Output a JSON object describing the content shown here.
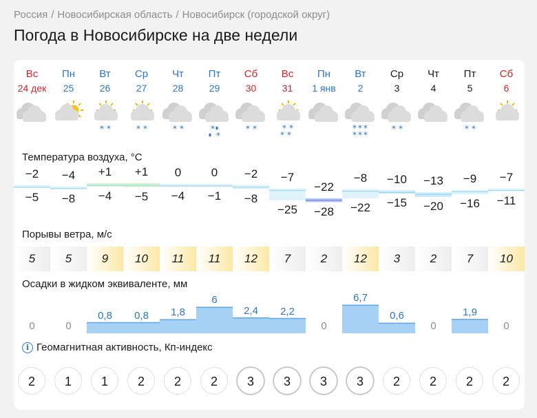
{
  "breadcrumb": [
    "Россия",
    "Новосибирская область",
    "Новосибирск (городской округ)"
  ],
  "title": "Погода в Новосибирске на две недели",
  "days": [
    {
      "dow": "Вс",
      "date": "24 дек",
      "type": "weekend",
      "icon": "cloudy",
      "precip": "none"
    },
    {
      "dow": "Пн",
      "date": "25",
      "type": "weekday",
      "icon": "partly-cloudy",
      "precip": "none"
    },
    {
      "dow": "Вт",
      "date": "26",
      "type": "weekday",
      "icon": "sun-cloud",
      "precip": "light-snow"
    },
    {
      "dow": "Ср",
      "date": "27",
      "type": "weekday",
      "icon": "sun-cloud",
      "precip": "light-snow"
    },
    {
      "dow": "Чт",
      "date": "28",
      "type": "weekday",
      "icon": "cloudy",
      "precip": "light-snow"
    },
    {
      "dow": "Пт",
      "date": "29",
      "type": "weekday",
      "icon": "cloudy",
      "precip": "rain-snow"
    },
    {
      "dow": "Сб",
      "date": "30",
      "type": "weekend",
      "icon": "cloudy",
      "precip": "light-snow"
    },
    {
      "dow": "Вс",
      "date": "31",
      "type": "weekend",
      "icon": "sun-cloud",
      "precip": "snow"
    },
    {
      "dow": "Пн",
      "date": "1 янв",
      "type": "weekday",
      "icon": "cloudy",
      "precip": "none"
    },
    {
      "dow": "Вт",
      "date": "2",
      "type": "weekday",
      "icon": "cloudy",
      "precip": "heavy-snow"
    },
    {
      "dow": "Ср",
      "date": "3",
      "type": "today",
      "icon": "cloudy",
      "precip": "light-snow"
    },
    {
      "dow": "Чт",
      "date": "4",
      "type": "today",
      "icon": "cloudy",
      "precip": "none"
    },
    {
      "dow": "Пт",
      "date": "5",
      "type": "today",
      "icon": "cloudy",
      "precip": "light-snow"
    },
    {
      "dow": "Сб",
      "date": "6",
      "type": "weekend",
      "icon": "sun-cloud",
      "precip": "none"
    }
  ],
  "temperature": {
    "label": "Температура воздуха, °С",
    "max": [
      "−2",
      "−4",
      "+1",
      "+1",
      "0",
      "0",
      "−2",
      "−7",
      "−22",
      "−8",
      "−10",
      "−13",
      "−9",
      "−7"
    ],
    "min": [
      "−5",
      "−8",
      "−4",
      "−5",
      "−4",
      "−1",
      "−8",
      "−25",
      "−28",
      "−22",
      "−15",
      "−20",
      "−16",
      "−11"
    ],
    "max_values": [
      -2,
      -4,
      1,
      1,
      0,
      0,
      -2,
      -7,
      -22,
      -8,
      -10,
      -13,
      -9,
      -7
    ],
    "min_values": [
      -5,
      -8,
      -4,
      -5,
      -4,
      -1,
      -8,
      -25,
      -28,
      -22,
      -15,
      -20,
      -16,
      -11
    ]
  },
  "wind": {
    "label": "Порывы ветра, м/с",
    "values": [
      "5",
      "5",
      "9",
      "10",
      "11",
      "11",
      "12",
      "7",
      "2",
      "12",
      "3",
      "2",
      "7",
      "10"
    ],
    "numeric": [
      5,
      5,
      9,
      10,
      11,
      11,
      12,
      7,
      2,
      12,
      3,
      2,
      7,
      10
    ]
  },
  "precipitation": {
    "label": "Осадки в жидком эквиваленте, мм",
    "values": [
      "0",
      "0",
      "0,8",
      "0,8",
      "1,8",
      "6",
      "2,4",
      "2,2",
      "0",
      "6,7",
      "0,6",
      "0",
      "1,9",
      "0"
    ],
    "numeric": [
      0,
      0,
      0.8,
      0.8,
      1.8,
      6,
      2.4,
      2.2,
      0,
      6.7,
      0.6,
      0,
      1.9,
      0
    ]
  },
  "geomagnetic": {
    "label": "Геомагнитная активность, Кп-индекс",
    "info_icon": "i",
    "values": [
      "2",
      "1",
      "1",
      "2",
      "2",
      "2",
      "3",
      "3",
      "3",
      "3",
      "2",
      "2",
      "2",
      "2"
    ],
    "numeric": [
      2,
      1,
      1,
      2,
      2,
      2,
      3,
      3,
      3,
      3,
      2,
      2,
      2,
      2
    ]
  },
  "colors": {
    "weekday": "#2a76c9",
    "weekend": "#d6222a",
    "wind_low": "#eeeeee",
    "wind_high": "#fbe8a6",
    "precip_fill": "#a7d0f5",
    "precip_text": "#2a76c9"
  }
}
